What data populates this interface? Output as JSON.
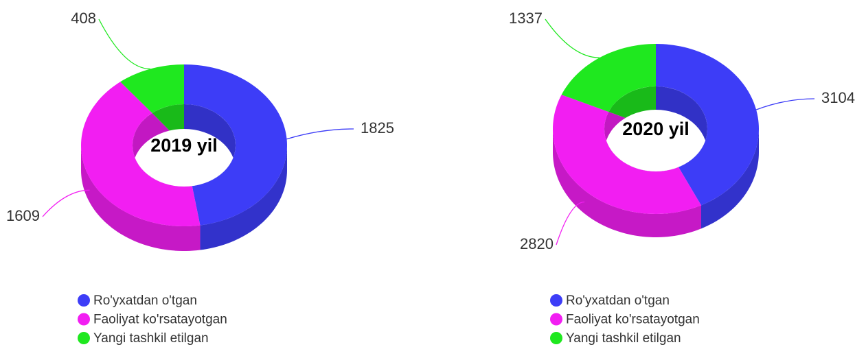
{
  "chart_data": [
    {
      "type": "donut",
      "title": "2019 yil",
      "categories": [
        "Ro'yxatdan o'tgan",
        "Faoliyat ko'rsatayotgan",
        "Yangi tashkil etilgan"
      ],
      "values": [
        1825,
        1609,
        408
      ],
      "colors": [
        "#3d3df7",
        "#f21ef2",
        "#1fe81f"
      ]
    },
    {
      "type": "donut",
      "title": "2020 yil",
      "categories": [
        "Ro'yxatdan o'tgan",
        "Faoliyat ko'rsatayotgan",
        "Yangi tashkil etilgan"
      ],
      "values": [
        3104,
        2820,
        1337
      ],
      "colors": [
        "#3d3df7",
        "#f21ef2",
        "#1fe81f"
      ]
    }
  ]
}
